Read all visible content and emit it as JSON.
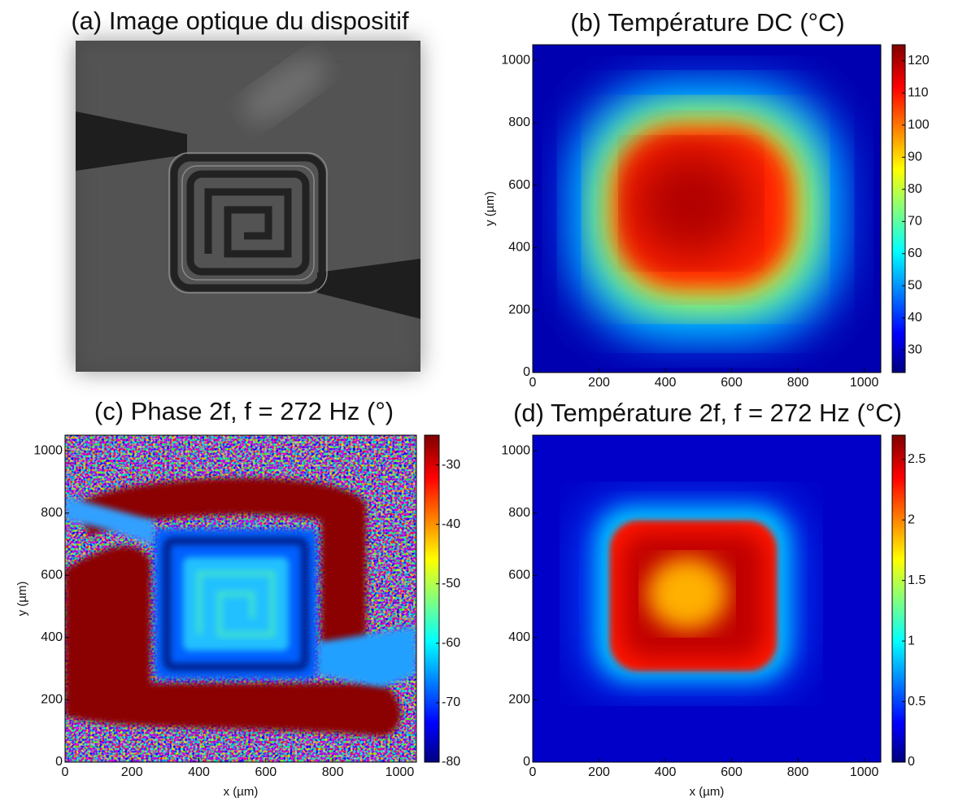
{
  "chart_data": [
    {
      "type": "image",
      "title": "(a) Image optique du dispositif"
    },
    {
      "type": "heatmap",
      "title": "(b) Température DC (°C)",
      "ylabel": "y (µm)",
      "xlim": [
        0,
        1050
      ],
      "xticks": [
        0,
        200,
        400,
        600,
        800,
        1000
      ],
      "ylim": [
        0,
        1050
      ],
      "yticks": [
        0,
        200,
        400,
        600,
        800,
        1000
      ],
      "clim": [
        23,
        125
      ],
      "cticks": [
        30,
        40,
        50,
        60,
        70,
        80,
        90,
        100,
        110,
        120
      ]
    },
    {
      "type": "heatmap",
      "title": "(c) Phase 2f, f = 272 Hz (°)",
      "xlabel": "x (µm)",
      "ylabel": "y (µm)",
      "xlim": [
        0,
        1050
      ],
      "xticks": [
        0,
        200,
        400,
        600,
        800,
        1000
      ],
      "ylim": [
        0,
        1050
      ],
      "yticks": [
        0,
        200,
        400,
        600,
        800,
        1000
      ],
      "clim": [
        -80,
        -25
      ],
      "cticks": [
        -80,
        -70,
        -60,
        -50,
        -40,
        -30
      ]
    },
    {
      "type": "heatmap",
      "title": "(d) Température 2f, f = 272 Hz (°C)",
      "xlabel": "x (µm)",
      "xlim": [
        0,
        1050
      ],
      "xticks": [
        0,
        200,
        400,
        600,
        800,
        1000
      ],
      "ylim": [
        0,
        1050
      ],
      "yticks": [
        0,
        200,
        400,
        600,
        800,
        1000
      ],
      "clim": [
        0,
        2.7
      ],
      "cticks": [
        0,
        0.5,
        1,
        1.5,
        2,
        2.5
      ]
    }
  ]
}
